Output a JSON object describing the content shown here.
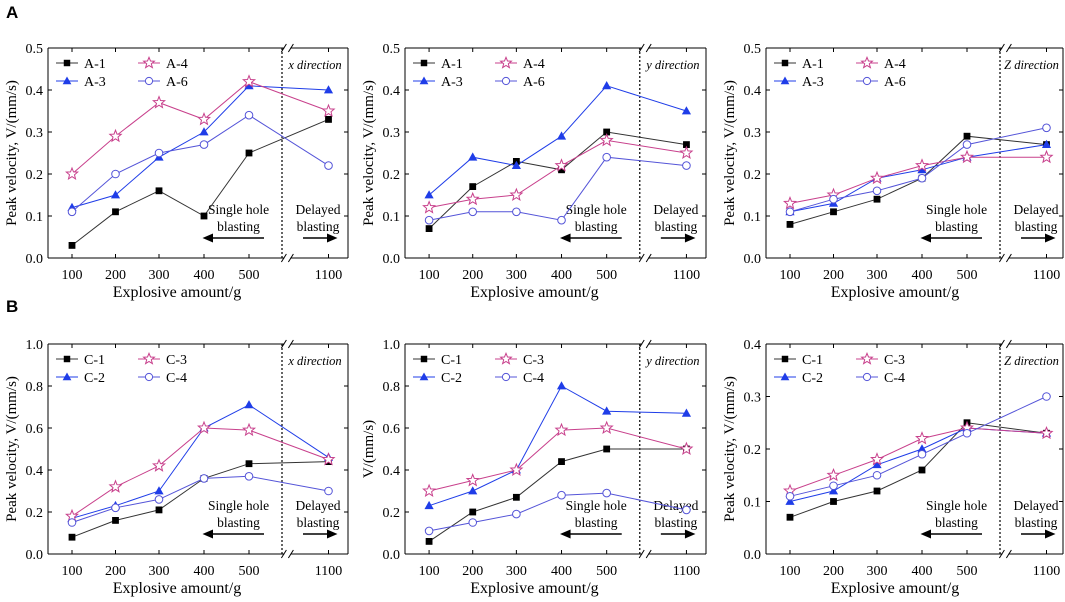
{
  "figure": {
    "panel_labels": [
      "A",
      "B"
    ]
  },
  "chart_data": [
    {
      "type": "line",
      "row": "A",
      "title": "",
      "xlabel": "Explosive amount/g",
      "ylabel": "Peak velocity,  V/(mm/s)",
      "categories": [
        "100",
        "200",
        "300",
        "400",
        "500",
        "1100"
      ],
      "ylim": [
        0,
        0.5
      ],
      "yticks": [
        "0.0",
        "0.1",
        "0.2",
        "0.3",
        "0.4",
        "0.5"
      ],
      "direction_label": "x direction",
      "annotations": {
        "left": [
          "Single hole",
          "blasting"
        ],
        "right": [
          "Delayed",
          "blasting"
        ]
      },
      "series": [
        {
          "name": "A-1",
          "values": [
            0.03,
            0.11,
            0.16,
            0.1,
            0.25,
            0.33
          ],
          "color": "#333333",
          "marker": "square"
        },
        {
          "name": "A-3",
          "values": [
            0.12,
            0.15,
            0.24,
            0.3,
            0.41,
            0.4
          ],
          "color": "#1f3de8",
          "marker": "triangle"
        },
        {
          "name": "A-4",
          "values": [
            0.2,
            0.29,
            0.37,
            0.33,
            0.42,
            0.35
          ],
          "color": "#c8408c",
          "marker": "star"
        },
        {
          "name": "A-6",
          "values": [
            0.11,
            0.2,
            0.25,
            0.27,
            0.34,
            0.22
          ],
          "color": "#5454d8",
          "marker": "circle"
        }
      ]
    },
    {
      "type": "line",
      "row": "A",
      "title": "",
      "xlabel": "Explosive amount/g",
      "ylabel": "Peak velocity,  V/(mm/s)",
      "categories": [
        "100",
        "200",
        "300",
        "400",
        "500",
        "1100"
      ],
      "ylim": [
        0,
        0.5
      ],
      "yticks": [
        "0.0",
        "0.1",
        "0.2",
        "0.3",
        "0.4",
        "0.5"
      ],
      "direction_label": "y direction",
      "annotations": {
        "left": [
          "Single hole",
          "blasting"
        ],
        "right": [
          "Delayed",
          "blasting"
        ]
      },
      "series": [
        {
          "name": "A-1",
          "values": [
            0.07,
            0.17,
            0.23,
            0.21,
            0.3,
            0.27
          ],
          "color": "#333333",
          "marker": "square"
        },
        {
          "name": "A-3",
          "values": [
            0.15,
            0.24,
            0.22,
            0.29,
            0.41,
            0.35
          ],
          "color": "#1f3de8",
          "marker": "triangle"
        },
        {
          "name": "A-4",
          "values": [
            0.12,
            0.14,
            0.15,
            0.22,
            0.28,
            0.25
          ],
          "color": "#c8408c",
          "marker": "star"
        },
        {
          "name": "A-6",
          "values": [
            0.09,
            0.11,
            0.11,
            0.09,
            0.24,
            0.22
          ],
          "color": "#5454d8",
          "marker": "circle"
        }
      ]
    },
    {
      "type": "line",
      "row": "A",
      "title": "",
      "xlabel": "Explosive amount/g",
      "ylabel": "Peak velocity,  V/(mm/s)",
      "categories": [
        "100",
        "200",
        "300",
        "400",
        "500",
        "1100"
      ],
      "ylim": [
        0,
        0.5
      ],
      "yticks": [
        "0.0",
        "0.1",
        "0.2",
        "0.3",
        "0.4",
        "0.5"
      ],
      "direction_label": "Z direction",
      "annotations": {
        "left": [
          "Single hole",
          "blasting"
        ],
        "right": [
          "Delayed",
          "blasting"
        ]
      },
      "series": [
        {
          "name": "A-1",
          "values": [
            0.08,
            0.11,
            0.14,
            0.19,
            0.29,
            0.27
          ],
          "color": "#333333",
          "marker": "square"
        },
        {
          "name": "A-3",
          "values": [
            0.11,
            0.13,
            0.19,
            0.21,
            0.24,
            0.27
          ],
          "color": "#1f3de8",
          "marker": "triangle"
        },
        {
          "name": "A-4",
          "values": [
            0.13,
            0.15,
            0.19,
            0.22,
            0.24,
            0.24
          ],
          "color": "#c8408c",
          "marker": "star"
        },
        {
          "name": "A-6",
          "values": [
            0.11,
            0.14,
            0.16,
            0.19,
            0.27,
            0.31
          ],
          "color": "#5454d8",
          "marker": "circle"
        }
      ]
    },
    {
      "type": "line",
      "row": "B",
      "title": "",
      "xlabel": "Explosive amount/g",
      "ylabel": "Peak velocity,  V/(mm/s)",
      "categories": [
        "100",
        "200",
        "300",
        "400",
        "500",
        "1100"
      ],
      "ylim": [
        0,
        1.0
      ],
      "yticks": [
        "0.0",
        "0.2",
        "0.4",
        "0.6",
        "0.8",
        "1.0"
      ],
      "direction_label": "x direction",
      "annotations": {
        "left": [
          "Single hole",
          "blasting"
        ],
        "right": [
          "Delayed",
          "blasting"
        ]
      },
      "series": [
        {
          "name": "C-1",
          "values": [
            0.08,
            0.16,
            0.21,
            0.36,
            0.43,
            0.44
          ],
          "color": "#333333",
          "marker": "square"
        },
        {
          "name": "C-2",
          "values": [
            0.17,
            0.23,
            0.3,
            0.6,
            0.71,
            0.46
          ],
          "color": "#1f3de8",
          "marker": "triangle"
        },
        {
          "name": "C-3",
          "values": [
            0.18,
            0.32,
            0.42,
            0.6,
            0.59,
            0.45
          ],
          "color": "#c8408c",
          "marker": "star"
        },
        {
          "name": "C-4",
          "values": [
            0.15,
            0.22,
            0.26,
            0.36,
            0.37,
            0.3
          ],
          "color": "#5454d8",
          "marker": "circle"
        }
      ]
    },
    {
      "type": "line",
      "row": "B",
      "title": "",
      "xlabel": "Explosive amount/g",
      "ylabel": "V/(mm/s)",
      "categories": [
        "100",
        "200",
        "300",
        "400",
        "500",
        "1100"
      ],
      "ylim": [
        0,
        1.0
      ],
      "yticks": [
        "0.0",
        "0.2",
        "0.4",
        "0.6",
        "0.8",
        "1.0"
      ],
      "direction_label": "y direction",
      "annotations": {
        "left": [
          "Single hole",
          "blasting"
        ],
        "right": [
          "Delayed",
          "blasting"
        ]
      },
      "series": [
        {
          "name": "C-1",
          "values": [
            0.06,
            0.2,
            0.27,
            0.44,
            0.5,
            0.5
          ],
          "color": "#333333",
          "marker": "square"
        },
        {
          "name": "C-2",
          "values": [
            0.23,
            0.3,
            0.4,
            0.8,
            0.68,
            0.67
          ],
          "color": "#1f3de8",
          "marker": "triangle"
        },
        {
          "name": "C-3",
          "values": [
            0.3,
            0.35,
            0.4,
            0.59,
            0.6,
            0.5
          ],
          "color": "#c8408c",
          "marker": "star"
        },
        {
          "name": "C-4",
          "values": [
            0.11,
            0.15,
            0.19,
            0.28,
            0.29,
            0.21
          ],
          "color": "#5454d8",
          "marker": "circle"
        }
      ]
    },
    {
      "type": "line",
      "row": "B",
      "title": "",
      "xlabel": "Explosive amount/g",
      "ylabel": "Peak velocity,  V/(mm/s)",
      "categories": [
        "100",
        "200",
        "300",
        "400",
        "500",
        "1100"
      ],
      "ylim": [
        0,
        0.4
      ],
      "yticks": [
        "0.0",
        "0.1",
        "0.2",
        "0.3",
        "0.4"
      ],
      "direction_label": "Z direction",
      "annotations": {
        "left": [
          "Single hole",
          "blasting"
        ],
        "right": [
          "Delayed",
          "blasting"
        ]
      },
      "series": [
        {
          "name": "C-1",
          "values": [
            0.07,
            0.1,
            0.12,
            0.16,
            0.25,
            0.23
          ],
          "color": "#333333",
          "marker": "square"
        },
        {
          "name": "C-2",
          "values": [
            0.1,
            0.12,
            0.17,
            0.2,
            0.24,
            0.23
          ],
          "color": "#1f3de8",
          "marker": "triangle"
        },
        {
          "name": "C-3",
          "values": [
            0.12,
            0.15,
            0.18,
            0.22,
            0.24,
            0.23
          ],
          "color": "#c8408c",
          "marker": "star"
        },
        {
          "name": "C-4",
          "values": [
            0.11,
            0.13,
            0.15,
            0.19,
            0.23,
            0.3
          ],
          "color": "#5454d8",
          "marker": "circle"
        }
      ]
    }
  ]
}
